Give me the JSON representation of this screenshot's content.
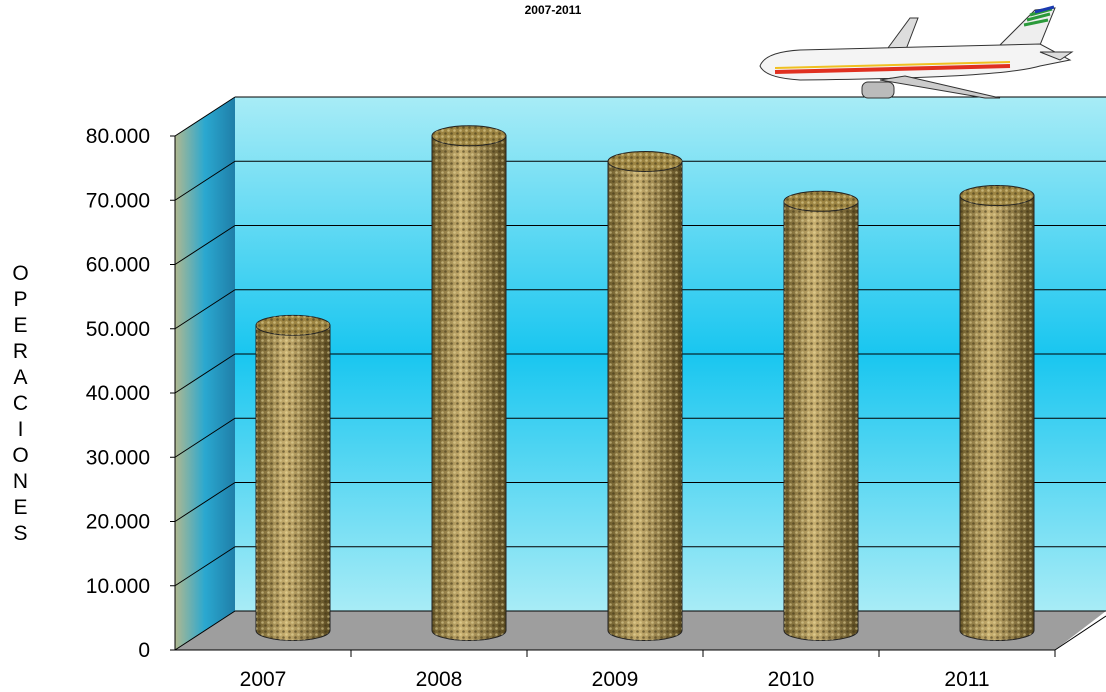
{
  "chart_data": {
    "type": "bar",
    "title": "2007-2011",
    "y_label": "OPERACIONES",
    "categories": [
      "2007",
      "2008",
      "2009",
      "2010",
      "2011"
    ],
    "values": [
      47500,
      77000,
      73000,
      66800,
      67700
    ],
    "color": "#9c8442",
    "ylim": [
      0,
      80000
    ],
    "yticks": [
      0,
      {
        "value": 10000,
        "label": "10.000"
      },
      {
        "value": 20000,
        "label": "20.000"
      },
      {
        "value": 30000,
        "label": "30.000"
      },
      {
        "value": 40000,
        "label": "40.000"
      },
      {
        "value": 50000,
        "label": "50.000"
      },
      {
        "value": 60000,
        "label": "60.000"
      },
      {
        "value": 70000,
        "label": "70.000"
      },
      {
        "value": 80000,
        "label": "80.000"
      }
    ],
    "grid": true
  }
}
